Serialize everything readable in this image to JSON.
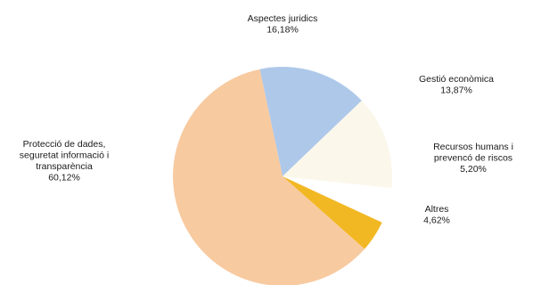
{
  "chart_data": {
    "type": "pie",
    "title": "",
    "slices": [
      {
        "label": "Aspectes juridics",
        "value": 16.18,
        "value_label": "16,18%",
        "color": "#aec8ea"
      },
      {
        "label": "Gestió econòmica",
        "value": 13.87,
        "value_label": "13,87%",
        "color": "#fbf7ea"
      },
      {
        "label": "Recursos humans i prevenció de riscos",
        "value": 5.2,
        "value_label": "5,20%",
        "color": "#ffffff"
      },
      {
        "label": "Altres",
        "value": 4.62,
        "value_label": "4,62%",
        "color": "#f2b824"
      },
      {
        "label": "Protecció de dades, seguretat informació i transparència",
        "value": 60.12,
        "value_label": "60,12%",
        "color": "#f8caa0"
      }
    ],
    "label_lines": [
      [
        "Aspectes juridics",
        "16,18%"
      ],
      [
        "Gestió econòmica",
        "13,87%"
      ],
      [
        "Recursos humans i",
        "prevencó de riscos",
        "5,20%"
      ],
      [
        "Altres",
        "4,62%"
      ],
      [
        "Protecció de dades,",
        "seguretat informació i",
        "transparència",
        "60,12%"
      ]
    ]
  }
}
